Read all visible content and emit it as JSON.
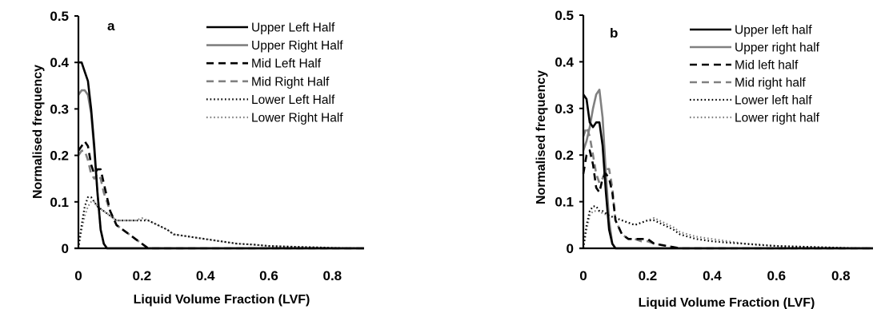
{
  "chart_data": [
    {
      "type": "line",
      "panel_label": "a",
      "xlabel": "Liquid Volume Fraction (LVF)",
      "ylabel": "Normalised frequency",
      "xlim": [
        0,
        0.9
      ],
      "ylim": [
        0,
        0.5
      ],
      "x_ticks": [
        "0",
        "0.2",
        "0.4",
        "0.6",
        "0.8"
      ],
      "y_ticks": [
        "0",
        "0.1",
        "0.2",
        "0.3",
        "0.4",
        "0.5"
      ],
      "grid": false,
      "legend_position": "top-right",
      "series": [
        {
          "name": "Upper Left Half",
          "color": "#000000",
          "dash": "solid",
          "x": [
            0,
            0.01,
            0.02,
            0.03,
            0.04,
            0.05,
            0.06,
            0.07,
            0.08,
            0.09,
            0.1,
            0.2,
            0.4,
            0.6,
            0.9
          ],
          "y": [
            0.4,
            0.4,
            0.38,
            0.36,
            0.3,
            0.22,
            0.12,
            0.04,
            0.01,
            0,
            0,
            0,
            0,
            0,
            0
          ]
        },
        {
          "name": "Upper Right Half",
          "color": "#808080",
          "dash": "solid",
          "x": [
            0,
            0.01,
            0.02,
            0.03,
            0.04,
            0.05,
            0.06,
            0.07,
            0.08,
            0.09,
            0.1,
            0.2,
            0.4,
            0.6,
            0.9
          ],
          "y": [
            0.33,
            0.34,
            0.34,
            0.33,
            0.29,
            0.21,
            0.12,
            0.04,
            0.01,
            0,
            0,
            0,
            0,
            0,
            0
          ]
        },
        {
          "name": "Mid Left Half",
          "color": "#000000",
          "dash": "dashed",
          "x": [
            0,
            0.01,
            0.02,
            0.03,
            0.04,
            0.05,
            0.06,
            0.07,
            0.08,
            0.1,
            0.12,
            0.14,
            0.16,
            0.18,
            0.2,
            0.22,
            0.3,
            0.6,
            0.9
          ],
          "y": [
            0.21,
            0.22,
            0.23,
            0.22,
            0.18,
            0.16,
            0.17,
            0.17,
            0.14,
            0.08,
            0.05,
            0.04,
            0.03,
            0.02,
            0.01,
            0,
            0,
            0,
            0
          ]
        },
        {
          "name": "Mid Right Half",
          "color": "#808080",
          "dash": "dashed",
          "x": [
            0,
            0.01,
            0.02,
            0.03,
            0.04,
            0.05,
            0.06,
            0.07,
            0.08,
            0.1,
            0.12,
            0.14,
            0.16,
            0.18,
            0.2,
            0.22,
            0.3,
            0.6,
            0.9
          ],
          "y": [
            0.2,
            0.21,
            0.21,
            0.19,
            0.16,
            0.15,
            0.16,
            0.15,
            0.12,
            0.08,
            0.05,
            0.04,
            0.03,
            0.02,
            0.01,
            0,
            0,
            0,
            0
          ]
        },
        {
          "name": "Lower Left Half",
          "color": "#000000",
          "dash": "dotted",
          "x": [
            0,
            0.01,
            0.02,
            0.03,
            0.04,
            0.05,
            0.06,
            0.08,
            0.1,
            0.12,
            0.14,
            0.16,
            0.18,
            0.2,
            0.22,
            0.25,
            0.28,
            0.3,
            0.35,
            0.4,
            0.45,
            0.5,
            0.55,
            0.6,
            0.7,
            0.8,
            0.9
          ],
          "y": [
            0,
            0.05,
            0.09,
            0.11,
            0.11,
            0.1,
            0.09,
            0.08,
            0.07,
            0.06,
            0.06,
            0.06,
            0.06,
            0.06,
            0.06,
            0.05,
            0.04,
            0.03,
            0.025,
            0.02,
            0.015,
            0.01,
            0.008,
            0.005,
            0.003,
            0.001,
            0
          ]
        },
        {
          "name": "Lower Right Half",
          "color": "#808080",
          "dash": "dotted",
          "x": [
            0,
            0.01,
            0.02,
            0.03,
            0.04,
            0.05,
            0.06,
            0.08,
            0.1,
            0.12,
            0.14,
            0.16,
            0.18,
            0.2,
            0.22,
            0.25,
            0.28,
            0.3,
            0.35,
            0.4,
            0.45,
            0.5,
            0.55,
            0.6,
            0.7,
            0.8,
            0.9
          ],
          "y": [
            0,
            0.04,
            0.07,
            0.09,
            0.1,
            0.1,
            0.09,
            0.08,
            0.07,
            0.06,
            0.06,
            0.06,
            0.06,
            0.065,
            0.06,
            0.05,
            0.04,
            0.03,
            0.025,
            0.02,
            0.015,
            0.01,
            0.008,
            0.005,
            0.003,
            0.001,
            0
          ]
        }
      ]
    },
    {
      "type": "line",
      "panel_label": "b",
      "xlabel": "Liquid Volume Fraction (LVF)",
      "ylabel": "Normalised frequency",
      "xlim": [
        0,
        0.9
      ],
      "ylim": [
        0,
        0.5
      ],
      "x_ticks": [
        "0",
        "0.2",
        "0.4",
        "0.6",
        "0.8"
      ],
      "y_ticks": [
        "0",
        "0.1",
        "0.2",
        "0.3",
        "0.4",
        "0.5"
      ],
      "grid": false,
      "legend_position": "top-right",
      "series": [
        {
          "name": "Upper left half",
          "color": "#000000",
          "dash": "solid",
          "x": [
            0,
            0.01,
            0.02,
            0.03,
            0.04,
            0.05,
            0.06,
            0.07,
            0.08,
            0.09,
            0.1,
            0.2,
            0.4,
            0.6,
            0.9
          ],
          "y": [
            0.33,
            0.32,
            0.27,
            0.26,
            0.27,
            0.27,
            0.22,
            0.12,
            0.04,
            0.01,
            0,
            0,
            0,
            0,
            0
          ]
        },
        {
          "name": "Upper right half",
          "color": "#808080",
          "dash": "solid",
          "x": [
            0,
            0.01,
            0.02,
            0.03,
            0.04,
            0.05,
            0.06,
            0.07,
            0.08,
            0.09,
            0.1,
            0.2,
            0.4,
            0.6,
            0.9
          ],
          "y": [
            0.21,
            0.23,
            0.26,
            0.3,
            0.33,
            0.34,
            0.28,
            0.16,
            0.06,
            0.01,
            0,
            0,
            0,
            0,
            0
          ]
        },
        {
          "name": "Mid left half",
          "color": "#000000",
          "dash": "dashed",
          "x": [
            0,
            0.01,
            0.02,
            0.03,
            0.04,
            0.05,
            0.06,
            0.07,
            0.08,
            0.09,
            0.1,
            0.12,
            0.14,
            0.16,
            0.18,
            0.2,
            0.22,
            0.3,
            0.6,
            0.9
          ],
          "y": [
            0.16,
            0.2,
            0.21,
            0.18,
            0.13,
            0.12,
            0.15,
            0.16,
            0.15,
            0.12,
            0.06,
            0.03,
            0.02,
            0.02,
            0.02,
            0.02,
            0.01,
            0,
            0,
            0
          ]
        },
        {
          "name": "Mid right half",
          "color": "#808080",
          "dash": "dashed",
          "x": [
            0,
            0.01,
            0.02,
            0.03,
            0.04,
            0.05,
            0.06,
            0.07,
            0.08,
            0.09,
            0.1,
            0.12,
            0.14,
            0.16,
            0.18,
            0.2,
            0.22,
            0.3,
            0.6,
            0.9
          ],
          "y": [
            0.24,
            0.26,
            0.24,
            0.2,
            0.16,
            0.14,
            0.15,
            0.17,
            0.17,
            0.13,
            0.06,
            0.03,
            0.02,
            0.02,
            0.015,
            0.015,
            0.01,
            0,
            0,
            0
          ]
        },
        {
          "name": "Lower left half",
          "color": "#000000",
          "dash": "dotted",
          "x": [
            0,
            0.01,
            0.02,
            0.03,
            0.04,
            0.05,
            0.06,
            0.08,
            0.1,
            0.12,
            0.14,
            0.16,
            0.18,
            0.2,
            0.22,
            0.25,
            0.28,
            0.3,
            0.35,
            0.4,
            0.45,
            0.5,
            0.55,
            0.6,
            0.7,
            0.8,
            0.9
          ],
          "y": [
            0,
            0.05,
            0.08,
            0.09,
            0.09,
            0.08,
            0.08,
            0.07,
            0.065,
            0.06,
            0.055,
            0.05,
            0.055,
            0.06,
            0.06,
            0.05,
            0.04,
            0.03,
            0.02,
            0.015,
            0.012,
            0.01,
            0.007,
            0.005,
            0.003,
            0.001,
            0
          ]
        },
        {
          "name": "Lower right half",
          "color": "#808080",
          "dash": "dotted",
          "x": [
            0,
            0.01,
            0.02,
            0.03,
            0.04,
            0.05,
            0.06,
            0.08,
            0.1,
            0.12,
            0.14,
            0.16,
            0.18,
            0.2,
            0.22,
            0.25,
            0.28,
            0.3,
            0.35,
            0.4,
            0.45,
            0.5,
            0.55,
            0.6,
            0.7,
            0.8,
            0.9
          ],
          "y": [
            0,
            0.04,
            0.07,
            0.08,
            0.08,
            0.08,
            0.075,
            0.07,
            0.065,
            0.06,
            0.055,
            0.05,
            0.055,
            0.06,
            0.065,
            0.055,
            0.045,
            0.035,
            0.025,
            0.02,
            0.015,
            0.01,
            0.008,
            0.005,
            0.003,
            0.001,
            0
          ]
        }
      ]
    }
  ]
}
